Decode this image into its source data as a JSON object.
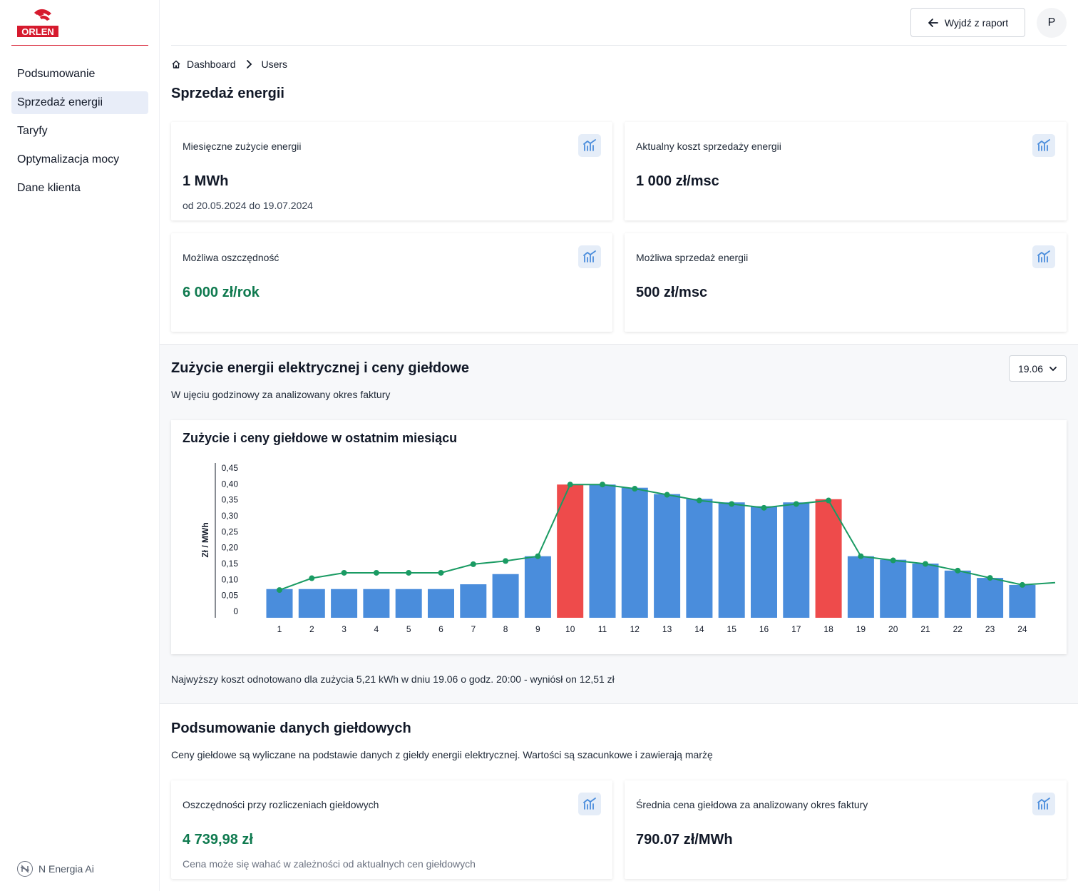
{
  "sidebar": {
    "logo_text": "ORLEN",
    "items": [
      {
        "label": "Podsumowanie"
      },
      {
        "label": "Sprzedaż energii"
      },
      {
        "label": "Taryfy"
      },
      {
        "label": "Optymalizacja mocy"
      },
      {
        "label": "Dane klienta"
      }
    ],
    "footer_brand": "N Energia Ai"
  },
  "header": {
    "exit_label": "Wyjdź z raport",
    "avatar_initial": "P"
  },
  "breadcrumb": [
    "Dashboard",
    "Users"
  ],
  "page_title": "Sprzedaż energii",
  "cards": {
    "consumption": {
      "label": "Miesięczne zużycie energii",
      "value": "1 MWh",
      "sub": "od 20.05.2024 do 19.07.2024"
    },
    "current_cost": {
      "label": "Aktualny koszt sprzedaży energii",
      "value": "1 000 zł/msc"
    },
    "savings": {
      "label": "Możliwa oszczędność",
      "value": "6 000 zł/rok"
    },
    "possible_sale": {
      "label": "Możliwa sprzedaż energii",
      "value": "500 zł/msc"
    }
  },
  "usage_section": {
    "title": "Zużycie energii elektrycznej i ceny giełdowe",
    "description": "W ujęciu godzinowy za analizowany okres faktury",
    "selected_date": "19.06",
    "chart_title": "Zużycie i ceny giełdowe w ostatnim miesiącu",
    "note": "Najwyższy koszt odnotowano dla zużycia 5,21 kWh w dniu 19.06 o godz. 20:00 - wyniósł on 12,51 zł"
  },
  "chart_data": {
    "type": "bar",
    "ylabel": "Zł / MWh",
    "ylim": [
      0,
      0.45
    ],
    "ytick_labels": [
      "0",
      "0,05",
      "0,10",
      "0,15",
      "0,20",
      "0,25",
      "0,30",
      "0,35",
      "0,40",
      "0,45"
    ],
    "categories": [
      "1",
      "2",
      "3",
      "4",
      "5",
      "6",
      "7",
      "8",
      "9",
      "10",
      "11",
      "12",
      "13",
      "14",
      "15",
      "16",
      "17",
      "18",
      "19",
      "20",
      "21",
      "22",
      "23",
      "24"
    ],
    "series": [
      {
        "values": [
          0.07,
          0.07,
          0.07,
          0.07,
          0.07,
          0.07,
          0.085,
          0.117,
          0.173,
          0.398,
          0.398,
          0.388,
          0.368,
          0.353,
          0.342,
          0.33,
          0.342,
          0.352,
          0.173,
          0.162,
          0.15,
          0.128,
          0.105,
          0.083
        ],
        "highlight": [
          false,
          false,
          false,
          false,
          false,
          false,
          false,
          false,
          false,
          true,
          false,
          false,
          false,
          false,
          false,
          false,
          false,
          true,
          false,
          false,
          false,
          false,
          false,
          false
        ]
      },
      {
        "values": [
          0.067,
          0.104,
          0.121,
          0.121,
          0.121,
          0.121,
          0.148,
          0.158,
          0.173,
          0.398,
          0.398,
          0.385,
          0.366,
          0.348,
          0.337,
          0.325,
          0.337,
          0.348,
          0.173,
          0.16,
          0.149,
          0.128,
          0.105,
          0.083
        ],
        "line_end_value": 0.09
      }
    ],
    "colors": {
      "bar": "#4a8ddc",
      "bar_highlight": "#ee4b4b",
      "line": "#1a9b63"
    },
    "grid": false
  },
  "stock_section": {
    "title": "Podsumowanie danych giełdowych",
    "description": "Ceny giełdowe są wyliczane na podstawie danych z giełdy energii elektrycznej. Wartości są szacunkowe i zawierają marżę"
  },
  "stock_cards": {
    "savings": {
      "label": "Oszczędności przy rozliczeniach giełdowych",
      "value": "4 739,98 zł",
      "sub": "Cena może się wahać w zależności od aktualnych cen giełdowych"
    },
    "avg_price": {
      "label": "Średnia cena giełdowa za analizowany okres faktury",
      "value": "790.07 zł/MWh"
    }
  },
  "colors": {
    "brand_red": "#d61a2e",
    "accent_green": "#0f7a4f",
    "icon_bg": "#e5edf8",
    "icon_fg": "#4a8ddc"
  },
  "icons": [
    "home-icon",
    "chevron-right-icon",
    "arrow-left-icon",
    "chart-icon",
    "chevron-down-icon"
  ]
}
